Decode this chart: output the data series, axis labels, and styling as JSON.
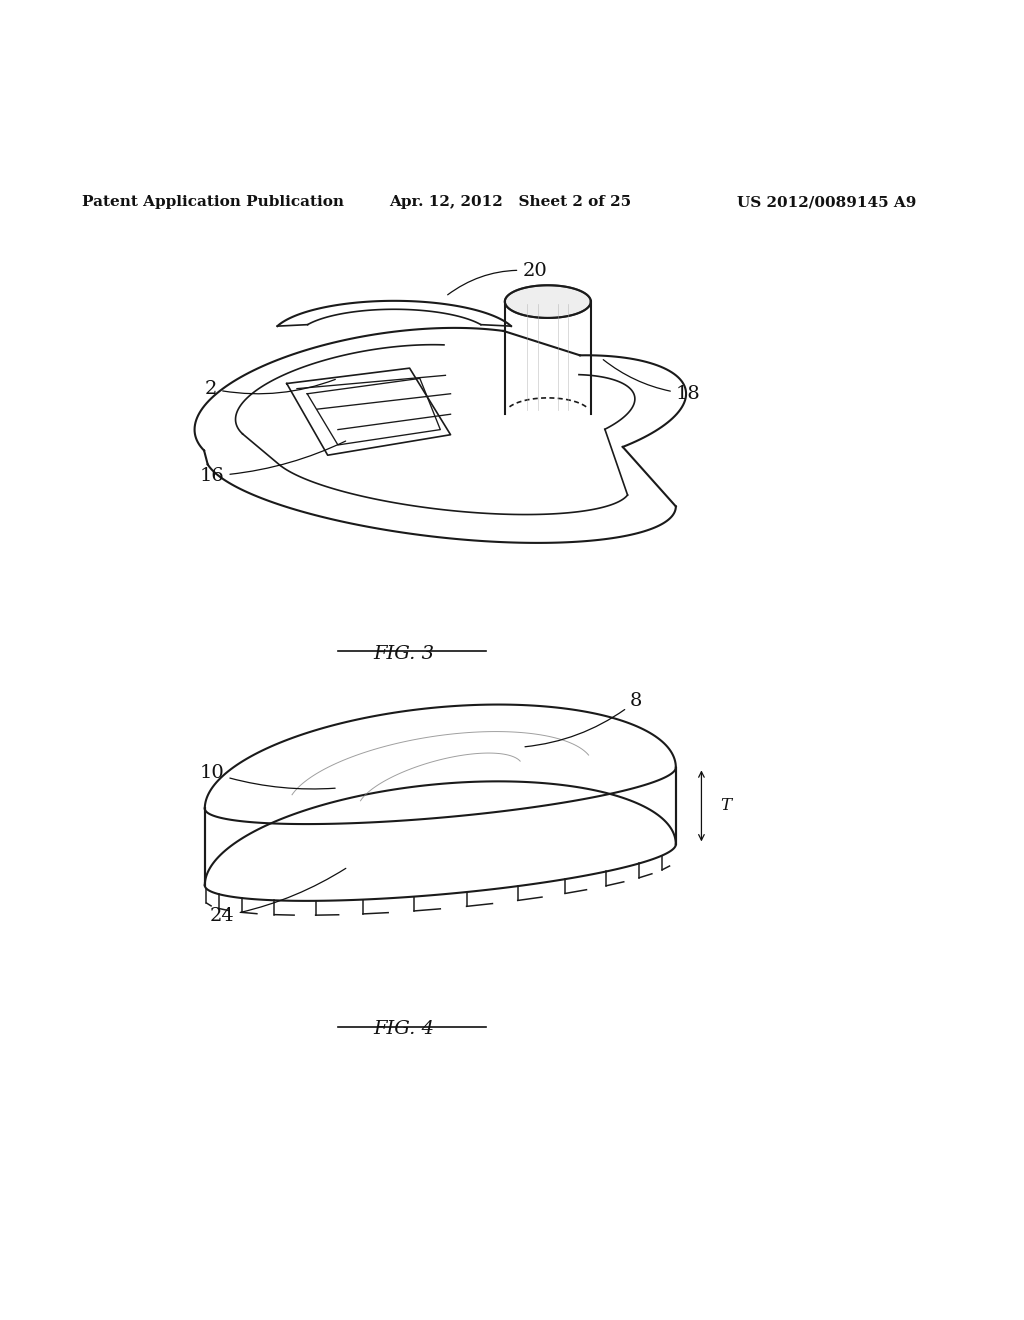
{
  "background_color": "#ffffff",
  "header_left": "Patent Application Publication",
  "header_mid": "Apr. 12, 2012   Sheet 2 of 25",
  "header_right": "US 2012/0089145 A9",
  "header_fontsize": 11,
  "fig3_label": "FIG. 3",
  "fig4_label": "FIG. 4",
  "fig_label_fontsize": 14,
  "label_fontsize": 14,
  "line_color": "#1a1a1a",
  "line_width": 1.2
}
